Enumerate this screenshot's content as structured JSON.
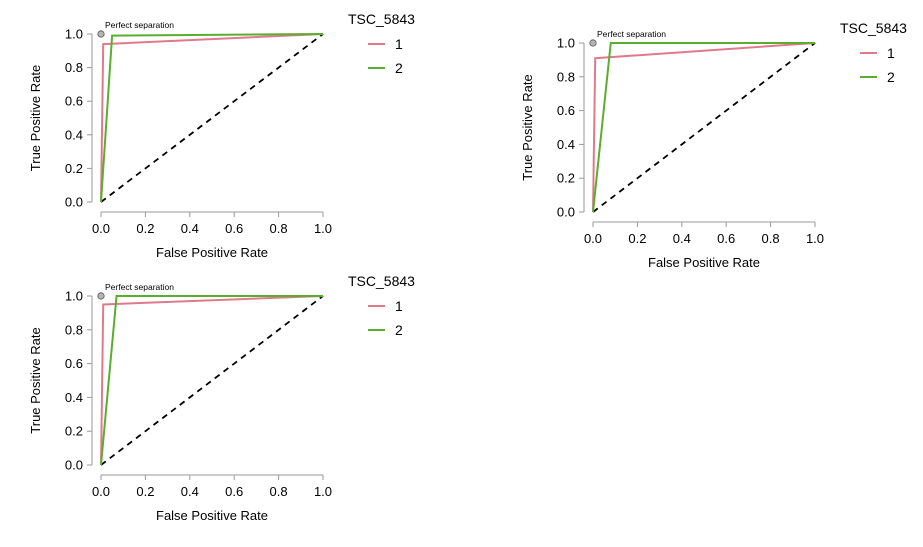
{
  "chart_data": [
    {
      "type": "line",
      "xlabel": "False Positive Rate",
      "ylabel": "True Positive Rate",
      "xlim": [
        0,
        1
      ],
      "ylim": [
        0,
        1
      ],
      "x_ticks": [
        "0.0",
        "0.2",
        "0.4",
        "0.6",
        "0.8",
        "1.0"
      ],
      "y_ticks": [
        "0.0",
        "0.2",
        "0.4",
        "0.6",
        "0.8",
        "1.0"
      ],
      "grid": false,
      "annotation": {
        "text": "Perfect separation",
        "x": 0,
        "y": 1
      },
      "diagonal": "dashed",
      "legend": {
        "title": "TSC_5843",
        "placement": "right"
      },
      "series": [
        {
          "name": "1",
          "color": "#E07A8B",
          "x": [
            0,
            0.01,
            1
          ],
          "y": [
            0,
            0.94,
            1
          ]
        },
        {
          "name": "2",
          "color": "#5AAE2F",
          "x": [
            0,
            0.05,
            1
          ],
          "y": [
            0,
            0.99,
            1
          ]
        }
      ]
    },
    {
      "type": "line",
      "xlabel": "False Positive Rate",
      "ylabel": "True Positive Rate",
      "xlim": [
        0,
        1
      ],
      "ylim": [
        0,
        1
      ],
      "x_ticks": [
        "0.0",
        "0.2",
        "0.4",
        "0.6",
        "0.8",
        "1.0"
      ],
      "y_ticks": [
        "0.0",
        "0.2",
        "0.4",
        "0.6",
        "0.8",
        "1.0"
      ],
      "grid": false,
      "annotation": {
        "text": "Perfect separation",
        "x": 0,
        "y": 1
      },
      "diagonal": "dashed",
      "legend": {
        "title": "TSC_5843",
        "placement": "right"
      },
      "series": [
        {
          "name": "1",
          "color": "#E07A8B",
          "x": [
            0,
            0.01,
            1
          ],
          "y": [
            0,
            0.91,
            1
          ]
        },
        {
          "name": "2",
          "color": "#5AAE2F",
          "x": [
            0,
            0.08,
            1
          ],
          "y": [
            0,
            1.0,
            1
          ]
        }
      ]
    },
    {
      "type": "line",
      "xlabel": "False Positive Rate",
      "ylabel": "True Positive Rate",
      "xlim": [
        0,
        1
      ],
      "ylim": [
        0,
        1
      ],
      "x_ticks": [
        "0.0",
        "0.2",
        "0.4",
        "0.6",
        "0.8",
        "1.0"
      ],
      "y_ticks": [
        "0.0",
        "0.2",
        "0.4",
        "0.6",
        "0.8",
        "1.0"
      ],
      "grid": false,
      "annotation": {
        "text": "Perfect separation",
        "x": 0,
        "y": 1
      },
      "diagonal": "dashed",
      "legend": {
        "title": "TSC_5843",
        "placement": "right"
      },
      "series": [
        {
          "name": "1",
          "color": "#E07A8B",
          "x": [
            0,
            0.01,
            1
          ],
          "y": [
            0,
            0.95,
            1
          ]
        },
        {
          "name": "2",
          "color": "#5AAE2F",
          "x": [
            0,
            0.07,
            1
          ],
          "y": [
            0,
            1.0,
            1
          ]
        }
      ]
    }
  ]
}
